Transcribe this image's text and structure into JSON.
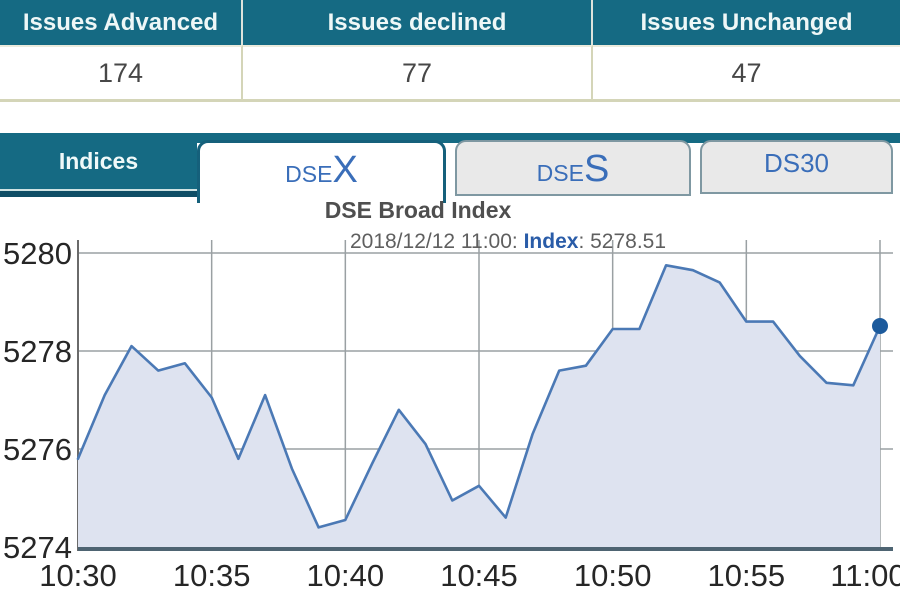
{
  "stats_table": {
    "headers": [
      "Issues Advanced",
      "Issues declined",
      "Issues Unchanged"
    ],
    "values": [
      "174",
      "77",
      "47"
    ]
  },
  "tabs": {
    "section_label": "Indices",
    "items": [
      {
        "prefix": "DSE",
        "suffix": "X",
        "active": true
      },
      {
        "prefix": "DSE",
        "suffix": "S",
        "active": false
      },
      {
        "label": "DS30",
        "active": false
      }
    ]
  },
  "chart": {
    "title": "DSE Broad Index",
    "subtitle_prefix": "2018/12/12 11:00: ",
    "subtitle_label": "Index",
    "subtitle_value": ": 5278.51"
  },
  "ui_colors": {
    "teal": "#156a83",
    "teal_dark": "#0f4e66",
    "tab_text_blue": "#3a6eb9",
    "table_border_beige": "#d4d5b8"
  },
  "chart_data": {
    "type": "area",
    "title": "DSE Broad Index",
    "subtitle": "2018/12/12 11:00: Index: 5278.51",
    "x_times": [
      "10:30",
      "10:31",
      "10:32",
      "10:33",
      "10:34",
      "10:35",
      "10:36",
      "10:37",
      "10:38",
      "10:39",
      "10:40",
      "10:41",
      "10:42",
      "10:43",
      "10:44",
      "10:45",
      "10:46",
      "10:47",
      "10:48",
      "10:49",
      "10:50",
      "10:51",
      "10:52",
      "10:53",
      "10:54",
      "10:55",
      "10:56",
      "10:57",
      "10:58",
      "10:59",
      "11:00"
    ],
    "values": [
      5275.8,
      5277.1,
      5278.1,
      5277.6,
      5277.75,
      5277.05,
      5275.8,
      5277.1,
      5275.6,
      5274.4,
      5274.55,
      5275.7,
      5276.8,
      5276.1,
      5274.95,
      5275.25,
      5274.6,
      5276.3,
      5277.6,
      5277.7,
      5278.45,
      5278.45,
      5279.75,
      5279.65,
      5279.4,
      5278.6,
      5278.6,
      5277.9,
      5277.35,
      5277.3,
      5278.51
    ],
    "x_tick_labels": [
      "10:30",
      "10:35",
      "10:40",
      "10:45",
      "10:50",
      "10:55",
      "11:00"
    ],
    "x_tick_step": 5,
    "y_ticks": [
      5274,
      5276,
      5278,
      5280
    ],
    "ylim": [
      5274,
      5280
    ],
    "grid": true,
    "legend": false,
    "last_point": {
      "time": "11:00",
      "value": 5278.51
    },
    "colors": {
      "line": "#4b79b5",
      "fill": "#dee3f0",
      "marker": "#1c5a9c",
      "grid": "#9aa0a3",
      "axis": "#4e6472",
      "axis_left": "#6a6a6a",
      "tick_text": "#262626"
    }
  }
}
